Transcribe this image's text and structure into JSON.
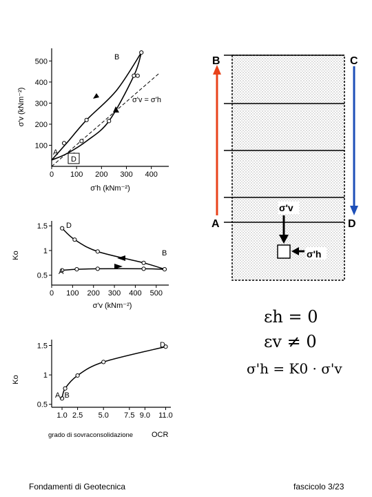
{
  "chart_data": [
    {
      "type": "line",
      "x_label": "σ'h (kNm⁻²)",
      "y_label": "σ'v (kNm⁻²)",
      "x_ticks": [
        0,
        100,
        200,
        300,
        400
      ],
      "y_ticks": [
        100,
        200,
        300,
        400,
        500
      ],
      "xlim": [
        0,
        470
      ],
      "ylim": [
        0,
        560
      ],
      "annotation": "σ'v = σ'h",
      "reference_line": [
        [
          0,
          0
        ],
        [
          430,
          440
        ]
      ],
      "series": [
        {
          "path": "loading",
          "x": [
            0,
            60,
            140,
            260,
            360
          ],
          "y": [
            30,
            110,
            220,
            360,
            540
          ]
        },
        {
          "path": "unloading",
          "x": [
            360,
            330,
            230,
            140,
            60,
            0
          ],
          "y": [
            540,
            430,
            215,
            120,
            60,
            30
          ]
        },
        {
          "path": "points",
          "x": [
            50,
            90,
            140,
            230,
            330,
            345,
            360,
            120
          ],
          "y": [
            110,
            55,
            220,
            215,
            430,
            430,
            540,
            120
          ]
        }
      ],
      "point_labels": [
        "A",
        "B",
        "D"
      ]
    },
    {
      "type": "line",
      "x_label": "σ'v (kNm⁻²)",
      "y_label": "Ko",
      "x_ticks": [
        0,
        100,
        200,
        300,
        400,
        500
      ],
      "y_ticks": [
        0.5,
        1.0,
        1.5
      ],
      "xlim": [
        0,
        560
      ],
      "ylim": [
        0.3,
        1.6
      ],
      "series": [
        {
          "path": "loading",
          "x": [
            50,
            120,
            220,
            440,
            540
          ],
          "y": [
            0.6,
            0.62,
            0.63,
            0.63,
            0.62
          ]
        },
        {
          "path": "unloading",
          "x": [
            50,
            110,
            220,
            440,
            540
          ],
          "y": [
            1.45,
            1.22,
            0.98,
            0.75,
            0.62
          ]
        }
      ],
      "point_labels": [
        "A",
        "B",
        "D"
      ]
    },
    {
      "type": "line",
      "x_label": "grado di sovraconsolidazione",
      "x_label_suffix": "OCR",
      "y_label": "Ko",
      "x_ticks": [
        "1.0",
        "2.5",
        "5.0",
        "7.5",
        "9.0",
        "11.0"
      ],
      "y_ticks": [
        0.5,
        1.0,
        1.5
      ],
      "x_tick_values": [
        1.0,
        2.5,
        5.0,
        7.5,
        9.0,
        11.0
      ],
      "xlim": [
        0,
        11.5
      ],
      "ylim": [
        0.45,
        1.6
      ],
      "series": [
        {
          "path": "OCR",
          "x": [
            1.0,
            1.3,
            2.5,
            5.0,
            11.0
          ],
          "y": [
            0.6,
            0.77,
            0.99,
            1.22,
            1.48
          ]
        }
      ],
      "point_labels": [
        "A, B",
        "D"
      ]
    }
  ],
  "schematic": {
    "labels": {
      "B": "B",
      "C": "C",
      "A": "A",
      "D": "D"
    },
    "sigma_v": "σ'v",
    "sigma_h": "σ'h",
    "colors": {
      "loading": "#e8421a",
      "unloading": "#1d4fb8"
    }
  },
  "equations": {
    "eq1": "εh  = 0",
    "eq2": "εv  ≠ 0",
    "eq3": "σ'h  = K0 · σ'v"
  },
  "footer": {
    "left": "Fondamenti di Geotecnica",
    "right": "fascicolo 3/23"
  }
}
